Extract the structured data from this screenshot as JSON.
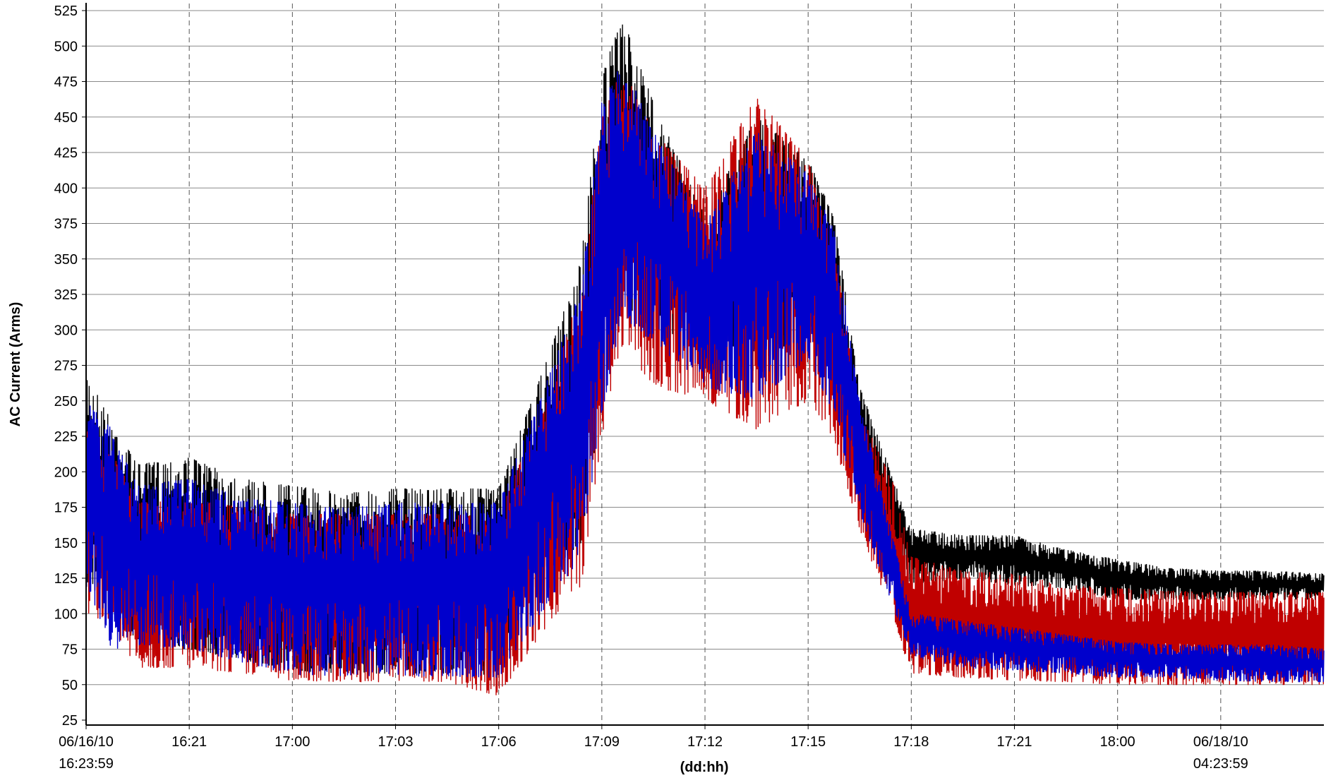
{
  "chart_data": {
    "type": "line",
    "title": "",
    "xlabel": "(dd:hh)",
    "ylabel": "AC Current (Arms)",
    "ylim": [
      25,
      525
    ],
    "yticks": [
      25,
      50,
      75,
      100,
      125,
      150,
      175,
      200,
      225,
      250,
      275,
      300,
      325,
      350,
      375,
      400,
      425,
      450,
      475,
      500,
      525
    ],
    "xlim": [
      0,
      12
    ],
    "xticks": [
      {
        "x": 0,
        "line1": "06/16/10",
        "line2": "16:23:59"
      },
      {
        "x": 1,
        "line1": "16:21",
        "line2": ""
      },
      {
        "x": 2,
        "line1": "17:00",
        "line2": ""
      },
      {
        "x": 3,
        "line1": "17:03",
        "line2": ""
      },
      {
        "x": 4,
        "line1": "17:06",
        "line2": ""
      },
      {
        "x": 5,
        "line1": "17:09",
        "line2": ""
      },
      {
        "x": 6,
        "line1": "17:12",
        "line2": ""
      },
      {
        "x": 7,
        "line1": "17:15",
        "line2": ""
      },
      {
        "x": 8,
        "line1": "17:18",
        "line2": ""
      },
      {
        "x": 9,
        "line1": "17:21",
        "line2": ""
      },
      {
        "x": 10,
        "line1": "18:00",
        "line2": ""
      },
      {
        "x": 11,
        "line1": "06/18/10",
        "line2": "04:23:59"
      }
    ],
    "grid": {
      "vertical": "dashed",
      "horizontal": "solid"
    },
    "legend": "none",
    "series": [
      {
        "color": "#000000",
        "envelope": {
          "x": [
            0.0,
            0.25,
            0.5,
            1.0,
            1.5,
            2.0,
            2.5,
            3.0,
            3.5,
            4.0,
            4.5,
            4.8,
            5.0,
            5.2,
            5.5,
            6.0,
            6.5,
            7.0,
            7.25,
            7.5,
            7.8,
            8.0,
            8.5,
            9.0,
            9.5,
            10.0,
            10.5,
            11.0,
            11.5,
            12.0
          ],
          "low": [
            120,
            110,
            78,
            75,
            68,
            60,
            58,
            58,
            58,
            57,
            130,
            150,
            250,
            320,
            300,
            290,
            270,
            300,
            260,
            190,
            150,
            120,
            125,
            120,
            118,
            110,
            110,
            110,
            110,
            110
          ],
          "high": [
            270,
            235,
            205,
            210,
            195,
            190,
            185,
            188,
            188,
            188,
            285,
            350,
            480,
            520,
            460,
            380,
            450,
            420,
            380,
            260,
            200,
            160,
            155,
            155,
            145,
            138,
            132,
            130,
            130,
            128
          ]
        }
      },
      {
        "color": "#c00000",
        "envelope": {
          "x": [
            0.0,
            0.25,
            0.5,
            1.0,
            1.5,
            2.0,
            2.5,
            3.0,
            3.5,
            4.0,
            4.5,
            4.8,
            5.0,
            5.2,
            5.5,
            6.0,
            6.5,
            7.0,
            7.25,
            7.5,
            7.8,
            8.0,
            8.5,
            9.0,
            9.5,
            10.0,
            10.5,
            11.0,
            11.5,
            12.0
          ],
          "low": [
            100,
            90,
            62,
            62,
            58,
            53,
            52,
            52,
            52,
            42,
            95,
            120,
            225,
            290,
            260,
            250,
            230,
            250,
            220,
            160,
            100,
            58,
            55,
            53,
            52,
            50,
            50,
            50,
            50,
            50
          ],
          "high": [
            235,
            215,
            178,
            180,
            175,
            170,
            170,
            170,
            170,
            168,
            260,
            330,
            450,
            485,
            440,
            400,
            465,
            420,
            360,
            240,
            200,
            140,
            130,
            128,
            120,
            118,
            116,
            115,
            115,
            115
          ]
        }
      },
      {
        "color": "#0000cc",
        "envelope": {
          "x": [
            0.0,
            0.25,
            0.5,
            1.0,
            1.5,
            2.0,
            2.5,
            3.0,
            3.5,
            4.0,
            4.5,
            4.8,
            5.0,
            5.2,
            5.5,
            6.0,
            6.5,
            7.0,
            7.25,
            7.5,
            7.8,
            8.0,
            8.5,
            9.0,
            9.5,
            10.0,
            10.5,
            11.0,
            11.5,
            12.0
          ],
          "low": [
            120,
            75,
            78,
            75,
            66,
            57,
            56,
            56,
            56,
            55,
            110,
            140,
            240,
            310,
            290,
            260,
            250,
            280,
            240,
            170,
            110,
            70,
            62,
            60,
            58,
            55,
            55,
            53,
            52,
            52
          ],
          "high": [
            250,
            230,
            190,
            195,
            182,
            178,
            175,
            178,
            178,
            178,
            270,
            330,
            460,
            490,
            440,
            375,
            440,
            410,
            370,
            250,
            160,
            100,
            95,
            90,
            85,
            80,
            78,
            78,
            78,
            75
          ]
        }
      }
    ]
  }
}
